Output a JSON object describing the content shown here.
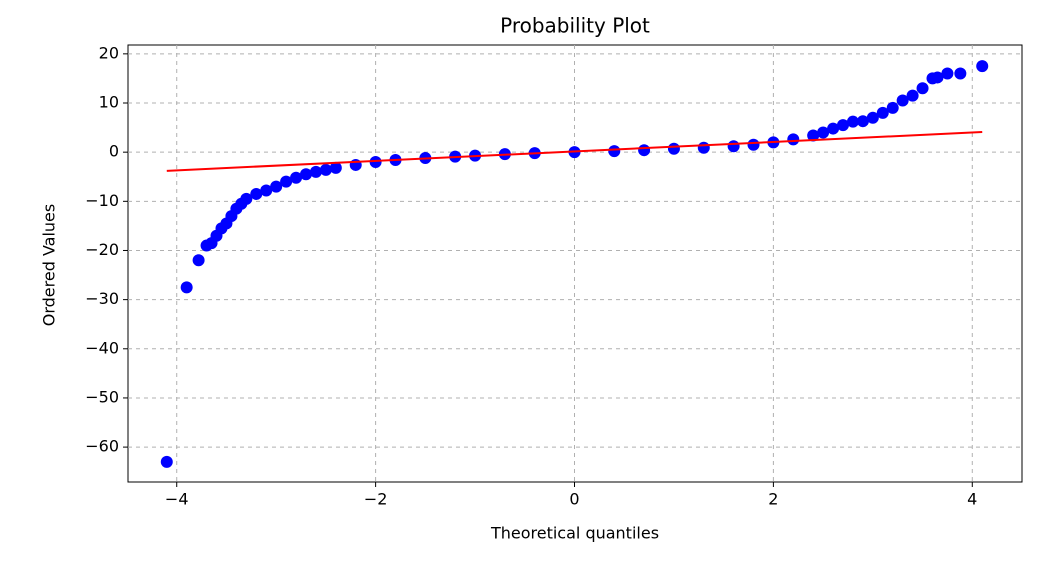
{
  "chart_data": {
    "type": "scatter",
    "title": "Probability Plot",
    "x_label": "Theoretical quantiles",
    "y_label": "Ordered Values",
    "x": [
      -4.1,
      -3.9,
      -3.78,
      -3.7,
      -3.65,
      -3.6,
      -3.55,
      -3.5,
      -3.45,
      -3.4,
      -3.35,
      -3.3,
      -3.2,
      -3.1,
      -3.0,
      -2.9,
      -2.8,
      -2.7,
      -2.6,
      -2.5,
      -2.4,
      -2.2,
      -2.0,
      -1.8,
      -1.5,
      -1.2,
      -1.0,
      -0.7,
      -0.4,
      0.0,
      0.4,
      0.7,
      1.0,
      1.3,
      1.6,
      1.8,
      2.0,
      2.2,
      2.4,
      2.5,
      2.6,
      2.7,
      2.8,
      2.9,
      3.0,
      3.1,
      3.2,
      3.3,
      3.4,
      3.5,
      3.6,
      3.65,
      3.75,
      3.88,
      4.1
    ],
    "y": [
      -63,
      -27.5,
      -22,
      -19,
      -18.5,
      -17,
      -15.5,
      -14.5,
      -13,
      -11.5,
      -10.5,
      -9.5,
      -8.5,
      -7.8,
      -7,
      -6,
      -5.2,
      -4.5,
      -4,
      -3.6,
      -3.2,
      -2.6,
      -2,
      -1.6,
      -1.2,
      -0.9,
      -0.7,
      -0.4,
      -0.2,
      0,
      0.2,
      0.4,
      0.7,
      0.9,
      1.2,
      1.5,
      2,
      2.6,
      3.4,
      4,
      4.8,
      5.5,
      6.2,
      6.3,
      7,
      8,
      9,
      10.5,
      11.5,
      13,
      15,
      15.2,
      16,
      16,
      17.5
    ],
    "color": "#0000ff",
    "fit_line": {
      "x": [
        -4.1,
        4.1
      ],
      "y": [
        -3.8,
        4.1
      ],
      "color": "#ff0000"
    },
    "xlim": [
      -4.49,
      4.5
    ],
    "ylim": [
      -67.1,
      21.8
    ],
    "xticks": [
      {
        "value": -4,
        "label": "−4"
      },
      {
        "value": -2,
        "label": "−2"
      },
      0,
      2,
      4
    ],
    "yticks": [
      20,
      10,
      0,
      {
        "value": -10,
        "label": "−10"
      },
      {
        "value": -20,
        "label": "−20"
      },
      {
        "value": -30,
        "label": "−30"
      },
      {
        "value": -40,
        "label": "−40"
      },
      {
        "value": -50,
        "label": "−50"
      },
      {
        "value": -60,
        "label": "−60"
      }
    ],
    "grid": true
  }
}
